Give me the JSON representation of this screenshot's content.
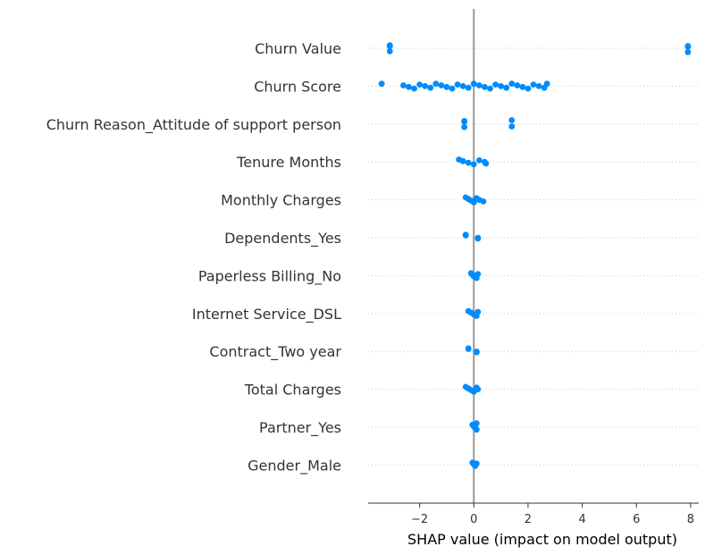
{
  "chart_data": {
    "type": "scatter",
    "variant": "shap-beeswarm",
    "title": "",
    "xlabel": "SHAP value (impact on model output)",
    "ylabel": "",
    "xlim": [
      -3.9,
      8.3
    ],
    "x_ticks": [
      -2,
      0,
      2,
      4,
      6,
      8
    ],
    "x_tick_labels": [
      "−2",
      "0",
      "2",
      "4",
      "6",
      "8"
    ],
    "zero_line": 0,
    "grid": false,
    "legend": "none",
    "point_color": "#008bfb",
    "zero_line_color": "#999999",
    "features": [
      {
        "name": "Churn Value",
        "shap_values": [
          -3.1,
          -3.1,
          -3.1,
          -3.1,
          7.9,
          7.9,
          7.9
        ]
      },
      {
        "name": "Churn Score",
        "shap_values": [
          -3.4,
          -2.6,
          -2.4,
          -2.2,
          -2.0,
          -1.8,
          -1.6,
          -1.4,
          -1.2,
          -1.0,
          -0.8,
          -0.6,
          -0.4,
          -0.2,
          0.0,
          0.2,
          0.4,
          0.6,
          0.8,
          1.0,
          1.2,
          1.4,
          1.6,
          1.8,
          2.0,
          2.2,
          2.4,
          2.6,
          2.7
        ]
      },
      {
        "name": "Churn Reason_Attitude of support person",
        "shap_values": [
          -0.35,
          -0.35,
          -0.35,
          1.4,
          1.4
        ]
      },
      {
        "name": "Tenure Months",
        "shap_values": [
          -0.55,
          -0.4,
          -0.2,
          0.0,
          0.2,
          0.4,
          0.45
        ]
      },
      {
        "name": "Monthly Charges",
        "shap_values": [
          -0.3,
          -0.2,
          -0.1,
          0.0,
          0.1,
          0.2,
          0.35
        ]
      },
      {
        "name": "Dependents_Yes",
        "shap_values": [
          -0.3,
          -0.3,
          0.15,
          0.15,
          0.15
        ]
      },
      {
        "name": "Paperless Billing_No",
        "shap_values": [
          -0.1,
          -0.05,
          0.0,
          0.1,
          0.15
        ]
      },
      {
        "name": "Internet Service_DSL",
        "shap_values": [
          -0.2,
          -0.1,
          0.0,
          0.1,
          0.15
        ]
      },
      {
        "name": "Contract_Two year",
        "shap_values": [
          -0.2,
          -0.2,
          0.1,
          0.1,
          0.1
        ]
      },
      {
        "name": "Total Charges",
        "shap_values": [
          -0.3,
          -0.2,
          -0.1,
          0.0,
          0.1,
          0.15
        ]
      },
      {
        "name": "Partner_Yes",
        "shap_values": [
          -0.05,
          0.0,
          0.05,
          0.1,
          0.1
        ]
      },
      {
        "name": "Gender_Male",
        "shap_values": [
          -0.05,
          0.0,
          0.05,
          0.05,
          0.1
        ]
      }
    ]
  }
}
